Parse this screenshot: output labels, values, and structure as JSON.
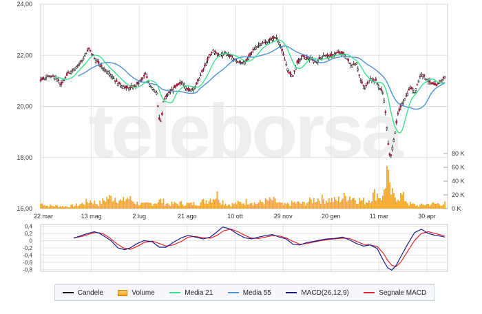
{
  "chart_data": [
    {
      "type": "candlestick",
      "panel": "price",
      "x_ticks": [
        "22 mar",
        "13 mag",
        "2 lug",
        "21 ago",
        "10 ott",
        "29 nov",
        "20 gen",
        "11 mar",
        "30 apr"
      ],
      "y_ticks": [
        "24,00",
        "22,00",
        "20,00",
        "18,00",
        "16,00"
      ],
      "ylim": [
        16,
        24
      ],
      "volume_ticks": [
        "80 K",
        "60 K",
        "40 K",
        "20 K",
        "0 K"
      ],
      "volume_ylim": [
        0,
        90000
      ],
      "watermark": "teleborsa",
      "price_path": [
        [
          0,
          21.0
        ],
        [
          12,
          21.2
        ],
        [
          22,
          21.15
        ],
        [
          30,
          20.85
        ],
        [
          40,
          21.3
        ],
        [
          50,
          21.5
        ],
        [
          60,
          21.8
        ],
        [
          70,
          22.25
        ],
        [
          80,
          21.8
        ],
        [
          90,
          21.5
        ],
        [
          100,
          21.3
        ],
        [
          112,
          20.9
        ],
        [
          125,
          20.7
        ],
        [
          135,
          20.75
        ],
        [
          145,
          21.0
        ],
        [
          152,
          21.25
        ],
        [
          158,
          20.85
        ],
        [
          168,
          20.55
        ],
        [
          172,
          19.5
        ],
        [
          175,
          19.4
        ],
        [
          178,
          20.2
        ],
        [
          185,
          20.5
        ],
        [
          195,
          20.75
        ],
        [
          205,
          20.95
        ],
        [
          215,
          20.6
        ],
        [
          225,
          20.8
        ],
        [
          235,
          21.4
        ],
        [
          242,
          21.8
        ],
        [
          250,
          22.2
        ],
        [
          258,
          22.0
        ],
        [
          268,
          22.1
        ],
        [
          278,
          21.9
        ],
        [
          288,
          21.7
        ],
        [
          298,
          21.75
        ],
        [
          308,
          22.2
        ],
        [
          318,
          22.45
        ],
        [
          328,
          22.5
        ],
        [
          336,
          22.65
        ],
        [
          342,
          22.7
        ],
        [
          346,
          22.5
        ],
        [
          352,
          22.0
        ],
        [
          360,
          21.3
        ],
        [
          366,
          21.2
        ],
        [
          372,
          21.7
        ],
        [
          380,
          21.95
        ],
        [
          390,
          21.85
        ],
        [
          400,
          21.75
        ],
        [
          410,
          22.0
        ],
        [
          420,
          21.95
        ],
        [
          430,
          22.1
        ],
        [
          440,
          22.05
        ],
        [
          450,
          21.6
        ],
        [
          458,
          21.7
        ],
        [
          464,
          21.0
        ],
        [
          470,
          20.7
        ],
        [
          478,
          21.1
        ],
        [
          486,
          21.0
        ],
        [
          492,
          20.7
        ],
        [
          497,
          20.5
        ],
        [
          501,
          19.5
        ],
        [
          504,
          18.5
        ],
        [
          507,
          17.9
        ],
        [
          510,
          18.4
        ],
        [
          514,
          19.0
        ],
        [
          518,
          19.7
        ],
        [
          524,
          20.1
        ],
        [
          530,
          20.4
        ],
        [
          536,
          20.75
        ],
        [
          542,
          20.55
        ],
        [
          548,
          21.0
        ],
        [
          552,
          21.3
        ],
        [
          558,
          21.1
        ],
        [
          566,
          20.9
        ],
        [
          574,
          20.8
        ],
        [
          580,
          21.0
        ],
        [
          586,
          21.15
        ]
      ],
      "volume_peaks": [
        [
          8,
          6000
        ],
        [
          24,
          5500
        ],
        [
          40,
          4500
        ],
        [
          56,
          8000
        ],
        [
          72,
          16000
        ],
        [
          84,
          9000
        ],
        [
          96,
          21000
        ],
        [
          108,
          23000
        ],
        [
          118,
          14000
        ],
        [
          126,
          22000
        ],
        [
          138,
          12000
        ],
        [
          150,
          8000
        ],
        [
          168,
          13000
        ],
        [
          174,
          16000
        ],
        [
          186,
          9000
        ],
        [
          204,
          11000
        ],
        [
          218,
          9000
        ],
        [
          232,
          12000
        ],
        [
          258,
          28000
        ],
        [
          260,
          18000
        ],
        [
          272,
          8000
        ],
        [
          292,
          12000
        ],
        [
          304,
          16000
        ],
        [
          312,
          10000
        ],
        [
          322,
          14000
        ],
        [
          336,
          17000
        ],
        [
          352,
          7000
        ],
        [
          368,
          12000
        ],
        [
          380,
          10000
        ],
        [
          388,
          14000
        ],
        [
          400,
          20000
        ],
        [
          416,
          18000
        ],
        [
          428,
          16000
        ],
        [
          446,
          26000
        ],
        [
          460,
          18000
        ],
        [
          472,
          14000
        ],
        [
          486,
          31000
        ],
        [
          496,
          21000
        ],
        [
          502,
          75000
        ],
        [
          506,
          36000
        ],
        [
          512,
          24000
        ],
        [
          524,
          26000
        ],
        [
          534,
          10000
        ],
        [
          548,
          6000
        ],
        [
          560,
          9000
        ],
        [
          578,
          10000
        ]
      ],
      "series": [
        {
          "name": "Candele",
          "color": "#000000"
        },
        {
          "name": "Volume",
          "color": "#f5a623"
        },
        {
          "name": "Media 21",
          "color": "#3de08a"
        },
        {
          "name": "Media 55",
          "color": "#4a90d9"
        }
      ]
    },
    {
      "type": "line",
      "panel": "macd",
      "y_ticks": [
        "0,4",
        "0,2",
        "0",
        "-0,2",
        "-0,4",
        "-0,6",
        "-0,8"
      ],
      "ylim": [
        -0.85,
        0.45
      ],
      "macd": [
        [
          48,
          0.07
        ],
        [
          60,
          0.15
        ],
        [
          68,
          0.2
        ],
        [
          78,
          0.25
        ],
        [
          86,
          0.2
        ],
        [
          94,
          0.1
        ],
        [
          102,
          0.0
        ],
        [
          112,
          -0.2
        ],
        [
          122,
          -0.25
        ],
        [
          130,
          -0.2
        ],
        [
          140,
          -0.08
        ],
        [
          150,
          0.0
        ],
        [
          162,
          -0.03
        ],
        [
          172,
          -0.18
        ],
        [
          182,
          -0.18
        ],
        [
          192,
          -0.05
        ],
        [
          204,
          0.08
        ],
        [
          214,
          0.15
        ],
        [
          224,
          0.1
        ],
        [
          236,
          0.05
        ],
        [
          246,
          0.1
        ],
        [
          256,
          0.25
        ],
        [
          264,
          0.38
        ],
        [
          274,
          0.33
        ],
        [
          284,
          0.2
        ],
        [
          296,
          0.08
        ],
        [
          306,
          0.05
        ],
        [
          316,
          0.1
        ],
        [
          326,
          0.14
        ],
        [
          336,
          0.17
        ],
        [
          346,
          0.1
        ],
        [
          356,
          0.05
        ],
        [
          366,
          -0.1
        ],
        [
          376,
          -0.12
        ],
        [
          386,
          -0.05
        ],
        [
          396,
          -0.02
        ],
        [
          406,
          0.02
        ],
        [
          416,
          0.05
        ],
        [
          426,
          0.06
        ],
        [
          438,
          0.1
        ],
        [
          448,
          0.02
        ],
        [
          458,
          -0.08
        ],
        [
          468,
          -0.15
        ],
        [
          478,
          -0.12
        ],
        [
          488,
          -0.22
        ],
        [
          497,
          -0.55
        ],
        [
          503,
          -0.75
        ],
        [
          509,
          -0.82
        ],
        [
          515,
          -0.7
        ],
        [
          522,
          -0.45
        ],
        [
          532,
          -0.1
        ],
        [
          542,
          0.22
        ],
        [
          552,
          0.32
        ],
        [
          562,
          0.2
        ],
        [
          572,
          0.15
        ],
        [
          582,
          0.12
        ],
        [
          586,
          0.1
        ]
      ],
      "signal": [
        [
          48,
          0.08
        ],
        [
          60,
          0.12
        ],
        [
          70,
          0.18
        ],
        [
          80,
          0.23
        ],
        [
          90,
          0.2
        ],
        [
          100,
          0.08
        ],
        [
          110,
          -0.08
        ],
        [
          120,
          -0.2
        ],
        [
          130,
          -0.24
        ],
        [
          140,
          -0.16
        ],
        [
          150,
          -0.05
        ],
        [
          162,
          -0.01
        ],
        [
          172,
          -0.08
        ],
        [
          182,
          -0.15
        ],
        [
          192,
          -0.12
        ],
        [
          204,
          -0.02
        ],
        [
          214,
          0.1
        ],
        [
          224,
          0.12
        ],
        [
          236,
          0.08
        ],
        [
          246,
          0.07
        ],
        [
          256,
          0.15
        ],
        [
          266,
          0.28
        ],
        [
          276,
          0.32
        ],
        [
          286,
          0.25
        ],
        [
          296,
          0.15
        ],
        [
          306,
          0.07
        ],
        [
          316,
          0.06
        ],
        [
          326,
          0.1
        ],
        [
          336,
          0.14
        ],
        [
          346,
          0.13
        ],
        [
          356,
          0.08
        ],
        [
          366,
          -0.02
        ],
        [
          376,
          -0.1
        ],
        [
          386,
          -0.08
        ],
        [
          396,
          -0.04
        ],
        [
          406,
          0.0
        ],
        [
          416,
          0.03
        ],
        [
          426,
          0.05
        ],
        [
          438,
          0.07
        ],
        [
          448,
          0.06
        ],
        [
          458,
          -0.02
        ],
        [
          468,
          -0.1
        ],
        [
          478,
          -0.12
        ],
        [
          488,
          -0.16
        ],
        [
          497,
          -0.35
        ],
        [
          503,
          -0.55
        ],
        [
          509,
          -0.68
        ],
        [
          515,
          -0.72
        ],
        [
          522,
          -0.6
        ],
        [
          532,
          -0.3
        ],
        [
          542,
          0.0
        ],
        [
          552,
          0.2
        ],
        [
          562,
          0.25
        ],
        [
          572,
          0.2
        ],
        [
          582,
          0.15
        ],
        [
          586,
          0.14
        ]
      ],
      "series": [
        {
          "name": "MACD(26,12,9)",
          "color": "#1a1a8c"
        },
        {
          "name": "Segnale MACD",
          "color": "#e0222a"
        }
      ]
    }
  ],
  "legend": [
    {
      "label": "Candele",
      "color": "#000000",
      "kind": "line"
    },
    {
      "label": "Volume",
      "color": "#f5a623",
      "kind": "box"
    },
    {
      "label": "Media 21",
      "color": "#3de08a",
      "kind": "line"
    },
    {
      "label": "Media 55",
      "color": "#4a90d9",
      "kind": "line"
    },
    {
      "label": "MACD(26,12,9)",
      "color": "#1a1a8c",
      "kind": "line"
    },
    {
      "label": "Segnale MACD",
      "color": "#e0222a",
      "kind": "line"
    }
  ]
}
